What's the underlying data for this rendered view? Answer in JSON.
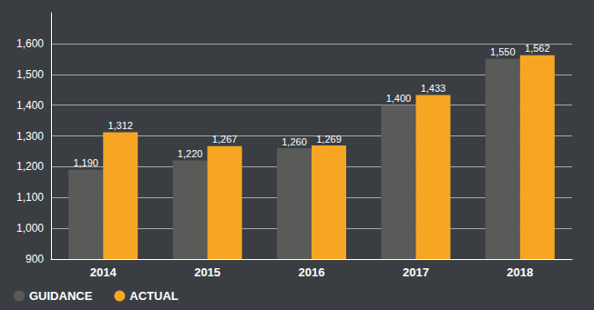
{
  "chart_data": {
    "type": "bar",
    "categories": [
      "2014",
      "2015",
      "2016",
      "2017",
      "2018"
    ],
    "series": [
      {
        "name": "GUIDANCE",
        "color": "#5a5a58",
        "values": [
          1190,
          1220,
          1260,
          1400,
          1550
        ],
        "value_labels": [
          "1,190",
          "1,220",
          "1,260",
          "1,400",
          "1,550"
        ]
      },
      {
        "name": "ACTUAL",
        "color": "#f6a623",
        "values": [
          1312,
          1267,
          1269,
          1433,
          1562
        ],
        "value_labels": [
          "1,312",
          "1,267",
          "1,269",
          "1,433",
          "1,562"
        ]
      }
    ],
    "ylim": [
      900,
      1700
    ],
    "yticks": [
      900,
      {
        "value": 1000,
        "label": "1,000"
      },
      {
        "value": 1100,
        "label": "1,100"
      },
      {
        "value": 1200,
        "label": "1,200"
      },
      {
        "value": 1300,
        "label": "1,300"
      },
      {
        "value": 1400,
        "label": "1,400"
      },
      {
        "value": 1500,
        "label": "1,500"
      },
      {
        "value": 1600,
        "label": "1,600"
      }
    ],
    "grid": true,
    "legend": "bottom left",
    "data_labels": true
  }
}
